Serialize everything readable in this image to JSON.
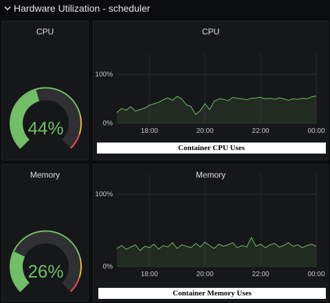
{
  "row": {
    "title": "Hardware Utilization - scheduler"
  },
  "cpu_gauge": {
    "title": "CPU",
    "value": 44,
    "value_label": "44%",
    "max": 100,
    "color": "#73bf69"
  },
  "memory_gauge": {
    "title": "Memory",
    "value": 26,
    "value_label": "26%",
    "max": 100,
    "color": "#73bf69"
  },
  "cpu_graph": {
    "title": "CPU",
    "caption": "Container CPU Uses"
  },
  "memory_graph": {
    "title": "Memory",
    "caption": "Container Memory Uses"
  },
  "colors": {
    "background": "#0b0c0e",
    "panel": "#161719",
    "series": "#73bf69",
    "threshold_amber": "#eab839",
    "threshold_red": "#f2495c"
  },
  "chart_data": [
    {
      "type": "area",
      "title": "CPU",
      "x": [
        "16:50",
        "17:00",
        "17:10",
        "17:20",
        "17:30",
        "17:40",
        "17:50",
        "18:00",
        "18:10",
        "18:20",
        "18:30",
        "18:40",
        "18:50",
        "19:00",
        "19:10",
        "19:20",
        "19:30",
        "19:40",
        "19:50",
        "20:00",
        "20:10",
        "20:20",
        "20:30",
        "20:40",
        "20:50",
        "21:00",
        "21:10",
        "21:20",
        "21:30",
        "21:40",
        "21:50",
        "22:00",
        "22:10",
        "22:20",
        "22:30",
        "22:40",
        "22:50",
        "23:00",
        "23:10",
        "23:20",
        "23:30",
        "23:40",
        "23:50",
        "00:00"
      ],
      "series": [
        {
          "values": [
            22,
            30,
            27,
            34,
            25,
            28,
            31,
            37,
            40,
            43,
            48,
            52,
            47,
            55,
            50,
            38,
            34,
            18,
            26,
            40,
            28,
            45,
            50,
            49,
            46,
            53,
            51,
            50,
            48,
            51,
            52,
            53,
            50,
            51,
            49,
            52,
            50,
            47,
            50,
            49,
            51,
            50,
            54,
            56
          ]
        }
      ],
      "xticks": [
        "18:00",
        "20:00",
        "22:00",
        "00:00"
      ],
      "yticks": [
        "0%",
        "100%"
      ],
      "ylim": [
        0,
        100
      ]
    },
    {
      "type": "area",
      "title": "Memory",
      "x": [
        "16:50",
        "17:00",
        "17:10",
        "17:20",
        "17:30",
        "17:40",
        "17:50",
        "18:00",
        "18:10",
        "18:20",
        "18:30",
        "18:40",
        "18:50",
        "19:00",
        "19:10",
        "19:20",
        "19:30",
        "19:40",
        "19:50",
        "20:00",
        "20:10",
        "20:20",
        "20:30",
        "20:40",
        "20:50",
        "21:00",
        "21:10",
        "21:20",
        "21:30",
        "21:40",
        "21:50",
        "22:00",
        "22:10",
        "22:20",
        "22:30",
        "22:40",
        "22:50",
        "23:00",
        "23:10",
        "23:20",
        "23:30",
        "23:40",
        "23:50",
        "00:00"
      ],
      "series": [
        {
          "values": [
            25,
            29,
            24,
            27,
            30,
            22,
            28,
            26,
            31,
            24,
            29,
            27,
            33,
            25,
            30,
            28,
            26,
            32,
            27,
            34,
            29,
            25,
            31,
            28,
            30,
            33,
            26,
            29,
            27,
            40,
            28,
            31,
            26,
            30,
            32,
            27,
            29,
            33,
            28,
            30,
            26,
            29,
            31,
            28
          ]
        }
      ],
      "xticks": [
        "18:00",
        "20:00",
        "22:00",
        "00:00"
      ],
      "yticks": [
        "0%",
        "100%"
      ],
      "ylim": [
        0,
        100
      ]
    }
  ]
}
